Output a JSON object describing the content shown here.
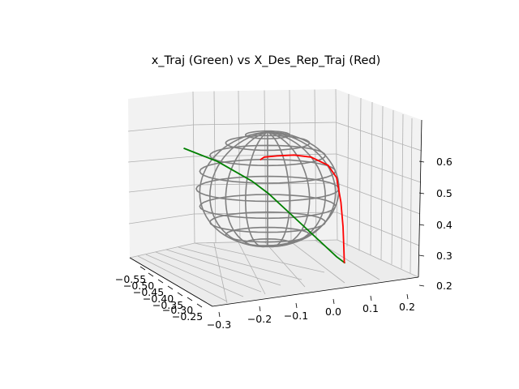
{
  "chart_data": {
    "type": "line3d",
    "title": "x_Traj (Green) vs X_Des_Rep_Traj (Red)",
    "axes": {
      "x": {
        "ticks": [
          "−0.55",
          "−0.50",
          "−0.45",
          "−0.40",
          "−0.35",
          "−0.30",
          "−0.25"
        ],
        "range": [
          -0.55,
          -0.25
        ]
      },
      "y": {
        "ticks": [
          "−0.3",
          "−0.2",
          "−0.1",
          "0.0",
          "0.1",
          "0.2"
        ],
        "range": [
          -0.3,
          0.2
        ]
      },
      "z": {
        "ticks": [
          "0.2",
          "0.3",
          "0.4",
          "0.5",
          "0.6"
        ],
        "range": [
          0.2,
          0.6
        ]
      }
    },
    "grid": true,
    "series": [
      {
        "color": "#008000",
        "points": [
          [
            -0.4,
            -0.28,
            0.66
          ],
          [
            -0.4,
            -0.24,
            0.64
          ],
          [
            -0.4,
            -0.2,
            0.62
          ],
          [
            -0.4,
            -0.16,
            0.59
          ],
          [
            -0.4,
            -0.12,
            0.56
          ],
          [
            -0.4,
            -0.08,
            0.52
          ],
          [
            -0.4,
            -0.04,
            0.47
          ],
          [
            -0.4,
            0.0,
            0.42
          ],
          [
            -0.4,
            0.04,
            0.37
          ],
          [
            -0.4,
            0.08,
            0.32
          ],
          [
            -0.4,
            0.1,
            0.3
          ]
        ]
      },
      {
        "color": "#ff0000",
        "points": [
          [
            -0.4,
            -0.1,
            0.63
          ],
          [
            -0.4,
            -0.09,
            0.64
          ],
          [
            -0.4,
            -0.06,
            0.645
          ],
          [
            -0.4,
            -0.02,
            0.65
          ],
          [
            -0.4,
            0.02,
            0.645
          ],
          [
            -0.4,
            0.06,
            0.62
          ],
          [
            -0.4,
            0.08,
            0.58
          ],
          [
            -0.4,
            0.09,
            0.5
          ],
          [
            -0.4,
            0.095,
            0.42
          ],
          [
            -0.4,
            0.097,
            0.35
          ],
          [
            -0.4,
            0.098,
            0.3
          ]
        ]
      }
    ],
    "sphere": {
      "color": "#808080",
      "center": [
        -0.4,
        -0.05,
        0.46
      ],
      "radius": 0.16
    }
  }
}
